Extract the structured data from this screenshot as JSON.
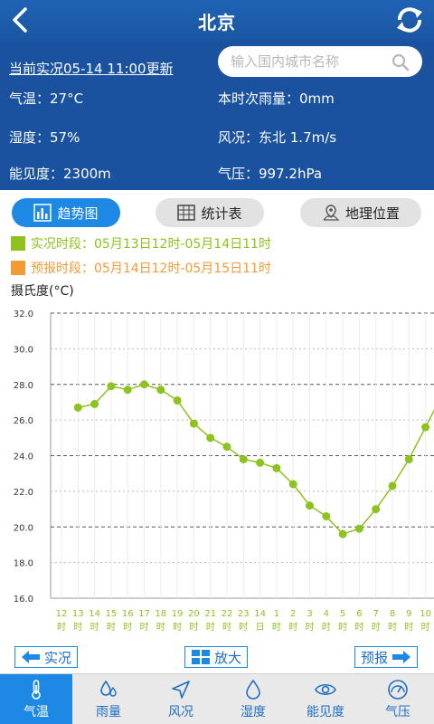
{
  "header": {
    "title": "北京"
  },
  "info": {
    "updated": "当前实况05-14 11:00更新",
    "search_placeholder": "输入国内城市名称",
    "temperature": "气温：27°C",
    "rainfall": "本时次雨量：0mm",
    "humidity": "湿度：57%",
    "wind": "风况：东北  1.7m/s",
    "visibility": "能见度：2300m",
    "pressure": "气压：997.2hPa"
  },
  "tabs": [
    {
      "label": "趋势图",
      "icon": "bar-chart-icon",
      "active": true
    },
    {
      "label": "统计表",
      "icon": "table-icon",
      "active": false
    },
    {
      "label": "地理位置",
      "icon": "map-pin-icon",
      "active": false
    }
  ],
  "legend": {
    "observed": "实况时段：05月13日12时-05月14日11时",
    "forecast": "预报时段：05月14日12时-05月15日11时"
  },
  "colors": {
    "accent": "#1e88e5",
    "header": "#1b52a0",
    "observed": "#8dc21f",
    "forecast": "#f39a36"
  },
  "chart_data": {
    "type": "line",
    "ylabel": "摄氏度(°C)",
    "ylim": [
      16.0,
      32.0
    ],
    "yticks": [
      "32.0",
      "30.0",
      "28.0",
      "26.0",
      "24.0",
      "22.0",
      "20.0",
      "18.0",
      "16.0"
    ],
    "x": [
      "12",
      "13",
      "14",
      "15",
      "16",
      "17",
      "18",
      "19",
      "20",
      "21",
      "22",
      "23",
      "14",
      "1",
      "2",
      "3",
      "4",
      "5",
      "6",
      "7",
      "8",
      "9",
      "10"
    ],
    "x_suffix": [
      "时",
      "时",
      "时",
      "时",
      "时",
      "时",
      "时",
      "时",
      "时",
      "时",
      "时",
      "时",
      "日",
      "时",
      "时",
      "时",
      "时",
      "时",
      "时",
      "时",
      "时",
      "时",
      "时"
    ],
    "series": [
      {
        "values": [
          null,
          26.7,
          26.9,
          27.9,
          27.7,
          28.0,
          27.7,
          27.1,
          25.8,
          25.0,
          24.5,
          23.8,
          23.6,
          23.3,
          22.4,
          21.2,
          20.6,
          19.6,
          19.9,
          21.0,
          22.3,
          23.8,
          25.6
        ]
      }
    ],
    "grid": true
  },
  "controls": {
    "prev": "实况",
    "zoom": "放大",
    "next": "预报"
  },
  "nav": [
    {
      "label": "气温",
      "icon": "thermometer-icon",
      "active": true
    },
    {
      "label": "雨量",
      "icon": "raindrop-icon",
      "active": false
    },
    {
      "label": "风况",
      "icon": "wind-arrow-icon",
      "active": false
    },
    {
      "label": "湿度",
      "icon": "humidity-drop-icon",
      "active": false
    },
    {
      "label": "能见度",
      "icon": "eye-icon",
      "active": false
    },
    {
      "label": "气压",
      "icon": "gauge-icon",
      "active": false
    }
  ]
}
